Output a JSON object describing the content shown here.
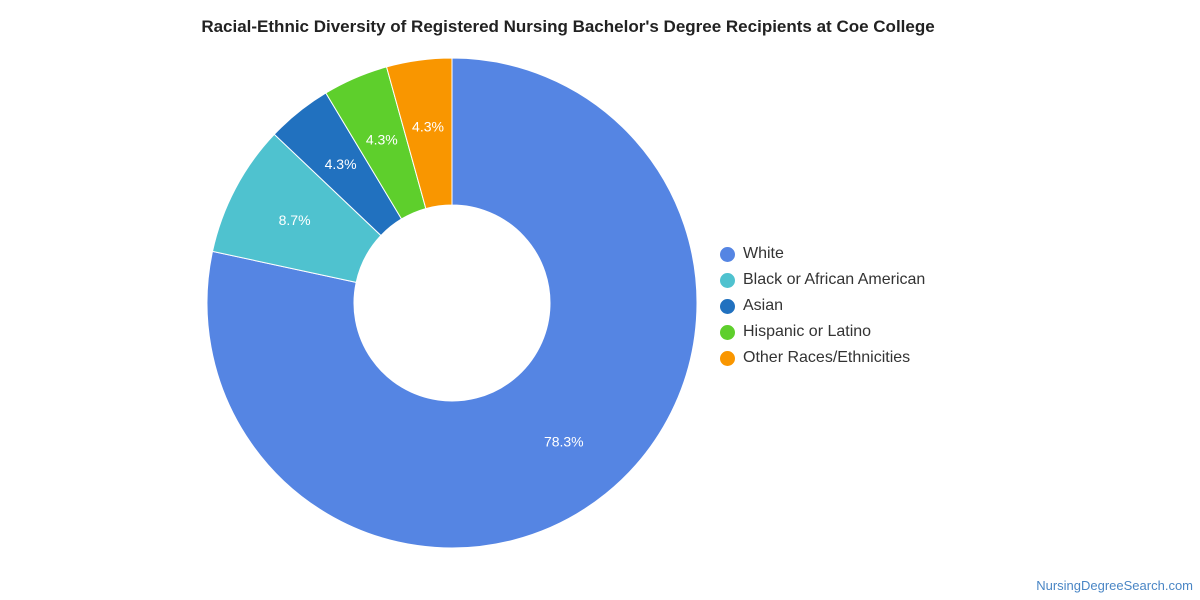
{
  "chart_data": {
    "type": "pie",
    "title": "Racial-Ethnic Diversity of Registered Nursing Bachelor's Degree Recipients at Coe College",
    "categories": [
      "White",
      "Black or African American",
      "Asian",
      "Hispanic or Latino",
      "Other Races/Ethnicities"
    ],
    "values": [
      78.3,
      8.7,
      4.3,
      4.3,
      4.3
    ],
    "data_labels": [
      "78.3%",
      "8.7%",
      "4.3%",
      "4.3%",
      "4.3%"
    ],
    "colors": [
      "#5585e3",
      "#4fc2cf",
      "#2171bf",
      "#5ecf2c",
      "#f99600"
    ],
    "donut": true,
    "legend_position": "right"
  },
  "watermark": "NursingDegreeSearch.com"
}
